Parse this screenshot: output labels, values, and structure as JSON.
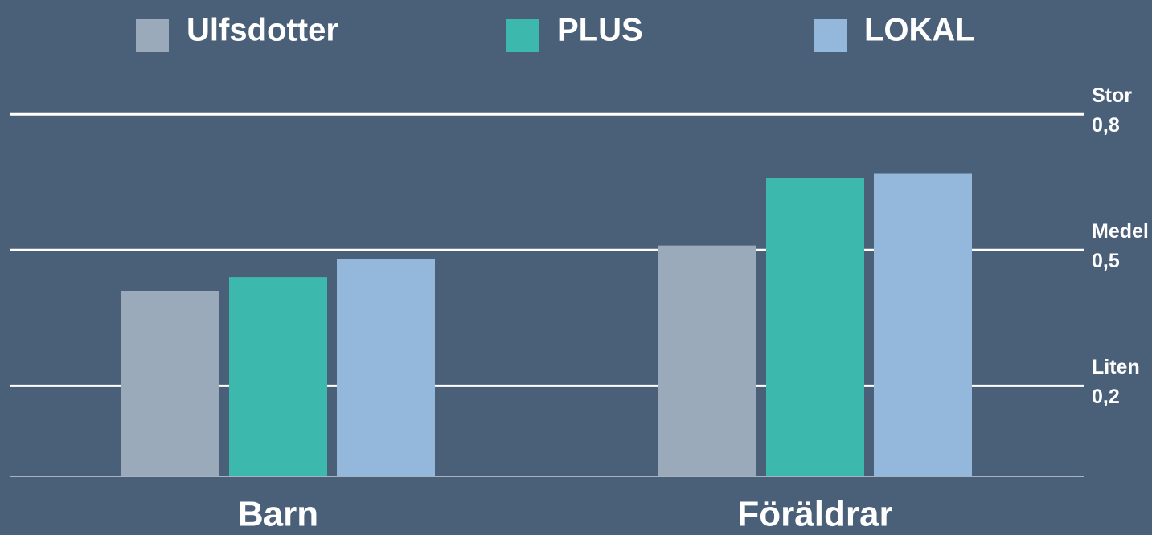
{
  "chart_data": {
    "type": "bar",
    "categories": [
      "Barn",
      "Föräldrar"
    ],
    "series": [
      {
        "name": "Ulfsdotter",
        "color": "#9aaabb",
        "values": [
          0.41,
          0.51
        ]
      },
      {
        "name": "PLUS",
        "color": "#3cb9ac",
        "values": [
          0.44,
          0.66
        ]
      },
      {
        "name": "LOKAL",
        "color": "#93b8dc",
        "values": [
          0.48,
          0.67
        ]
      }
    ],
    "ylim": [
      0,
      0.875
    ],
    "yticks": [
      {
        "value": 0.2,
        "label": "0,2",
        "name": "Liten"
      },
      {
        "value": 0.5,
        "label": "0,5",
        "name": "Medel"
      },
      {
        "value": 0.8,
        "label": "0,8",
        "name": "Stor"
      }
    ],
    "grid": true,
    "legend": "top"
  }
}
